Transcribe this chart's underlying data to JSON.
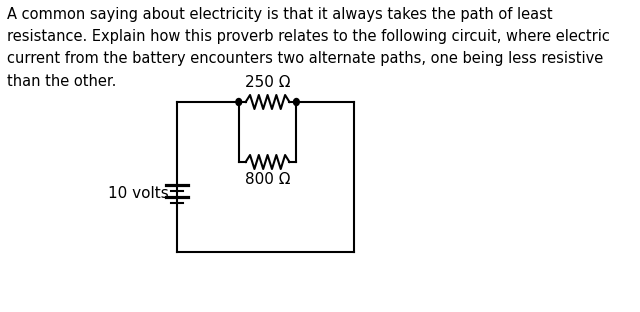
{
  "title_text": "A common saying about electricity is that it always takes the path of least\nresistance. Explain how this proverb relates to the following circuit, where electric\ncurrent from the battery encounters two alternate paths, one being less resistive\nthan the other.",
  "battery_label": "10 volts",
  "r1_label": "250 Ω",
  "r2_label": "800 Ω",
  "text_color": "#000000",
  "line_color": "#000000",
  "bg_color": "#ffffff",
  "font_size_text": 10.5,
  "font_size_labels": 11
}
